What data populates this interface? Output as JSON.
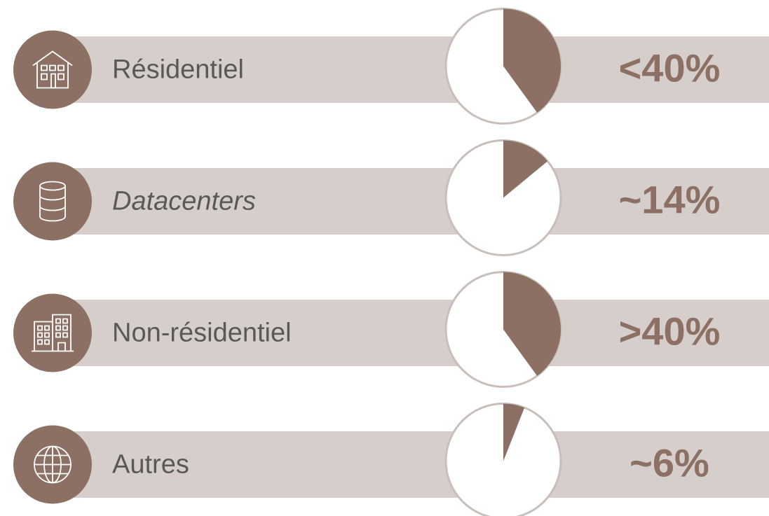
{
  "chart_data": {
    "type": "pie",
    "categories": [
      "Résidentiel",
      "Datacenters",
      "Non-résidentiel",
      "Autres"
    ],
    "values": [
      40,
      14,
      40,
      6
    ],
    "value_labels": [
      "<40%",
      "~14%",
      ">40%",
      "~6%"
    ],
    "color": "#8b7063"
  }
}
